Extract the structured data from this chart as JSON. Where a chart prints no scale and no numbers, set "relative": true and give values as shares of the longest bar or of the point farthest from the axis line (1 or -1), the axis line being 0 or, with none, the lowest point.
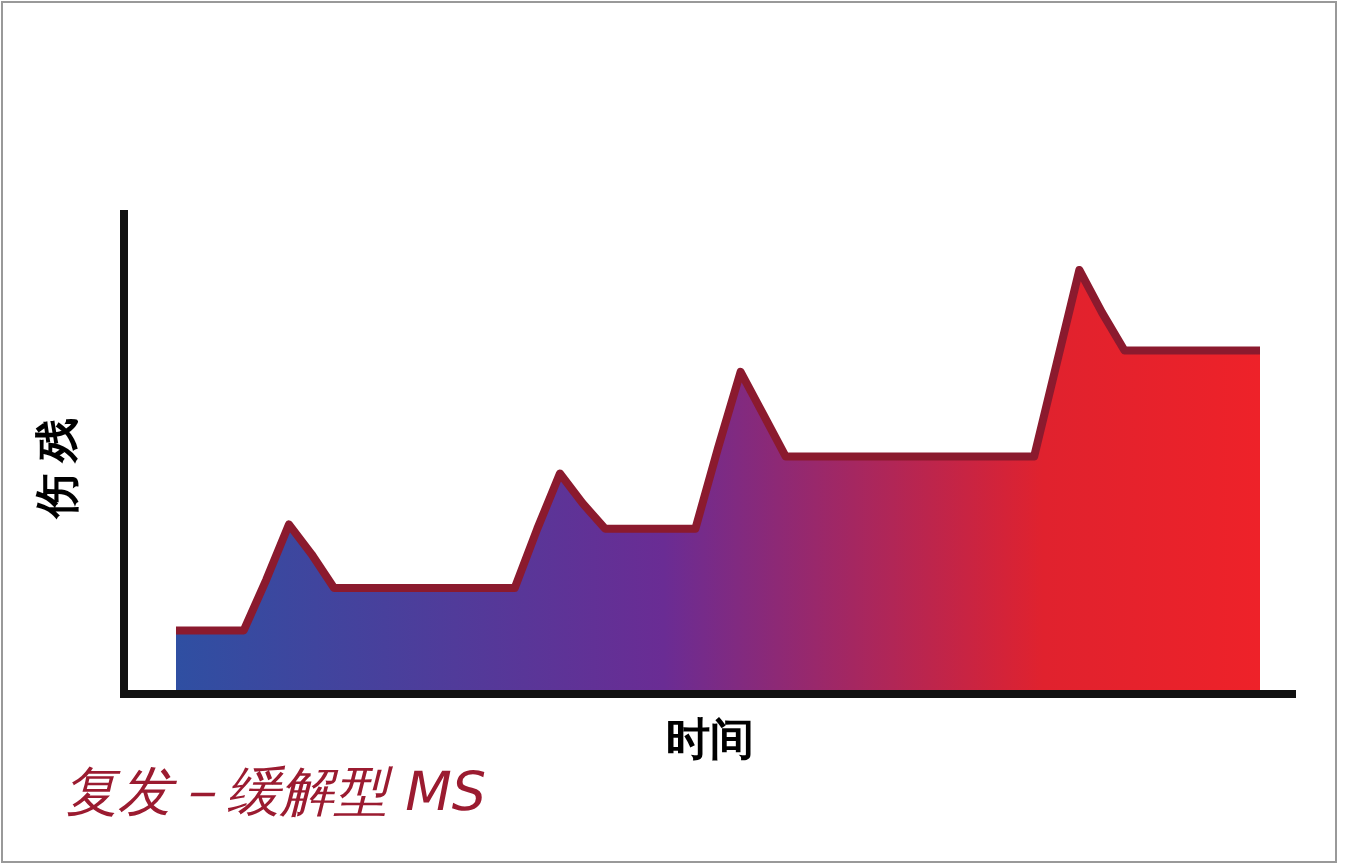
{
  "chart_data": {
    "type": "area",
    "relative": true,
    "xlabel": "时间",
    "ylabel": "伤残",
    "annotations": [
      "复发－缓解型 MS"
    ],
    "categories": [
      null,
      null,
      null,
      null,
      null,
      null,
      null,
      null,
      null,
      null,
      null,
      null,
      null,
      null,
      null,
      null,
      null,
      null,
      null,
      null,
      null,
      null,
      null,
      null,
      null,
      null,
      null,
      null,
      null,
      null,
      null,
      null,
      null,
      null,
      null,
      null,
      null,
      null,
      null,
      null,
      null,
      null,
      null,
      null,
      null,
      null,
      null,
      null,
      null
    ],
    "series": [
      {
        "color": "#8b1a2e",
        "values": [
          0.15,
          0.15,
          0.15,
          0.15,
          0.27,
          0.4,
          0.33,
          0.25,
          0.25,
          0.25,
          0.25,
          0.25,
          0.25,
          0.25,
          0.25,
          0.25,
          0.39,
          0.52,
          0.45,
          0.39,
          0.39,
          0.39,
          0.39,
          0.39,
          0.58,
          0.76,
          0.66,
          0.56,
          0.56,
          0.56,
          0.56,
          0.56,
          0.56,
          0.56,
          0.56,
          0.56,
          0.56,
          0.56,
          0.56,
          0.78,
          1,
          0.9,
          0.81,
          0.81,
          0.81,
          0.81,
          0.81,
          0.81,
          0.81
        ]
      }
    ]
  }
}
